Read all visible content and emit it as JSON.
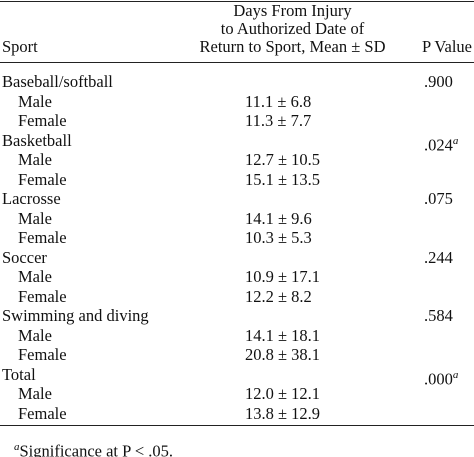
{
  "header": {
    "sport": "Sport",
    "days": [
      "Days From Injury",
      "to Authorized Date of",
      "Return to Sport, Mean ± SD"
    ],
    "p": "P Value"
  },
  "groups": [
    {
      "sport": "Baseball/softball",
      "p": ".900",
      "rows": [
        [
          "Male",
          "11.1 ± 6.8"
        ],
        [
          "Female",
          "11.3 ± 7.7"
        ]
      ]
    },
    {
      "sport": "Basketball",
      "p": ".024",
      "note": "a",
      "rows": [
        [
          "Male",
          "12.7 ± 10.5"
        ],
        [
          "Female",
          "15.1 ± 13.5"
        ]
      ]
    },
    {
      "sport": "Lacrosse",
      "p": ".075",
      "rows": [
        [
          "Male",
          "14.1 ± 9.6"
        ],
        [
          "Female",
          "10.3 ± 5.3"
        ]
      ]
    },
    {
      "sport": "Soccer",
      "p": ".244",
      "rows": [
        [
          "Male",
          "10.9 ± 17.1"
        ],
        [
          "Female",
          "12.2 ± 8.2"
        ]
      ]
    },
    {
      "sport": "Swimming and diving",
      "p": ".584",
      "rows": [
        [
          "Male",
          "14.1 ± 18.1"
        ],
        [
          "Female",
          "20.8 ± 38.1"
        ]
      ]
    },
    {
      "sport": "Total",
      "p": ".000",
      "note": "a",
      "rows": [
        [
          "Male",
          "12.0 ± 12.1"
        ],
        [
          "Female",
          "13.8 ± 12.9"
        ]
      ]
    }
  ],
  "footnote": {
    "marker": "a",
    "text": "Significance at P < .05."
  }
}
